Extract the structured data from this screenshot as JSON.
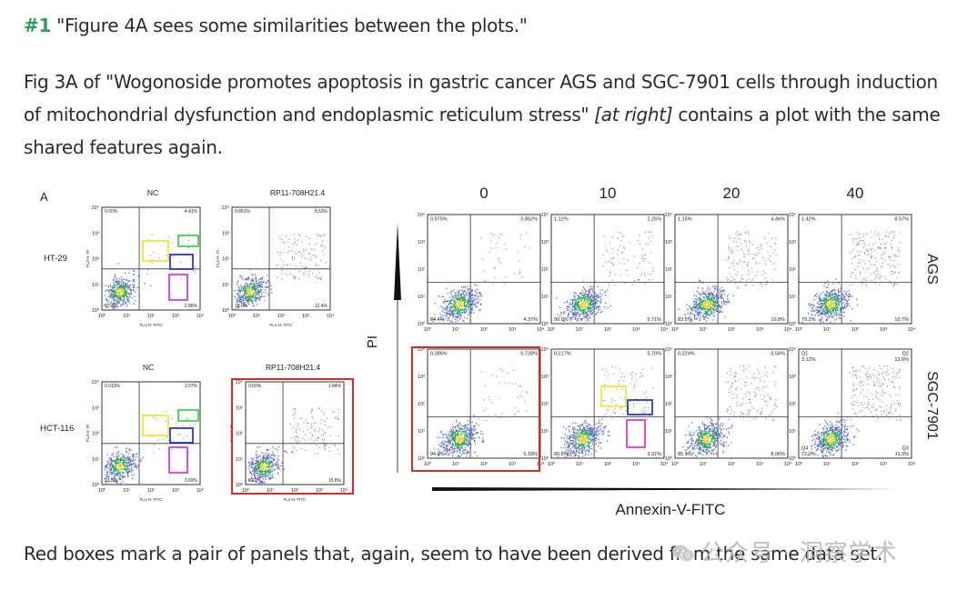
{
  "heading": {
    "number": "#1",
    "quote": " \"Figure 4A sees some similarities between the plots.\""
  },
  "paragraph": {
    "part1": "Fig 3A of \"Wogonoside promotes apoptosis in gastric cancer AGS and SGC-7901 cells through induction of mitochondrial dysfunction and endoplasmic reticulum stress\" ",
    "italic": "[at right]",
    "part2": " contains a plot with the same shared features again."
  },
  "left_figure": {
    "panel_letter": "A",
    "col_titles": [
      "NC",
      "RP11-708H21.4",
      "NC",
      "RP11-708H21.4"
    ],
    "row_labels": [
      "HT-29",
      "HCT-116"
    ],
    "y_axis_label": "FL3-H: PI",
    "x_axis_label": "FL1-H: FITC",
    "tick_labels": [
      "10⁰",
      "10¹",
      "10²",
      "10³",
      "10⁴"
    ],
    "quadrants": [
      {
        "ul": "0.00%",
        "ur": "4.41%",
        "ll": "92.7%",
        "lr": "2.86%"
      },
      {
        "ul": "0.851%",
        "ur": "8.53%",
        "ll": "78.0%",
        "lr": "12.4%"
      },
      {
        "ul": "0.013%",
        "ur": "3.07%",
        "ll": "93.3%",
        "lr": "3.69%"
      },
      {
        "ul": "0.00%",
        "ur": "1.84%",
        "ll": "82.3%",
        "lr": "15.8%"
      }
    ]
  },
  "right_figure": {
    "col_titles": [
      "0",
      "10",
      "20",
      "40"
    ],
    "row_labels": [
      "AGS",
      "SGC-7901"
    ],
    "y_axis_label": "PI",
    "x_axis_label": "Annexin-V-FITC",
    "tick_labels": [
      "10⁰",
      "10¹",
      "10²",
      "10³",
      "10⁴"
    ],
    "quadrants": [
      {
        "ul": "0.575%",
        "ur": "0.852%",
        "ll": "94.4%",
        "lr": "4.37%"
      },
      {
        "ul": "1.12%",
        "ur": "2.25%",
        "ll": "90.9%",
        "lr": "5.71%"
      },
      {
        "ul": "1.15%",
        "ur": "4.46%",
        "ll": "83.5%",
        "lr": "10.8%"
      },
      {
        "ul": "1.42%",
        "ur": "8.57%",
        "ll": "79.2%",
        "lr": "10.7%"
      },
      {
        "ul": "0.286%",
        "ur": "0.728%",
        "ll": "94.0%",
        "lr": "5.18%"
      },
      {
        "ul": "0.217%",
        "ur": "5.70%",
        "ll": "90.8%",
        "lr": "3.31%"
      },
      {
        "ul": "0.229%",
        "ur": "6.56%",
        "ll": "85.1%",
        "lr": "8.06%"
      },
      {
        "ul": "Q1\n3.12%",
        "ur": "Q2\n13.6%",
        "ll": "Q4\n72.0%",
        "lr": "Q3\n11.3%"
      }
    ]
  },
  "colors": {
    "accent_number": "#2e9e5b",
    "highlight_red": "#d42a2a",
    "box_yellow": "#f2e21a",
    "box_green": "#2ecc40",
    "box_blue": "#1020c8",
    "box_magenta": "#e020d8"
  },
  "caption": "Red boxes mark a pair of panels that, again, seem to have been derived from the same data set.",
  "watermark": "公众号 · 洞察学术"
}
